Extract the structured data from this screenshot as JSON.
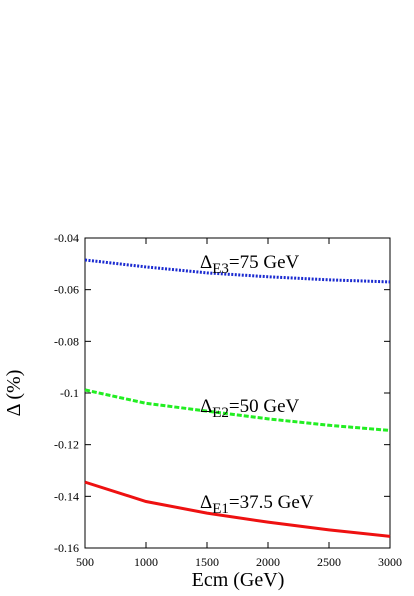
{
  "chart_data": {
    "type": "line",
    "x_label": "Ecm (GeV)",
    "y_label": "Δ (%)",
    "x": [
      500,
      1000,
      1500,
      2000,
      2500,
      3000
    ],
    "series": [
      {
        "name": "E1=37.5 GeV",
        "color": "#ee1111",
        "linestyle": "solid",
        "values": [
          -0.1345,
          -0.142,
          -0.1465,
          -0.15,
          -0.153,
          -0.1555
        ]
      },
      {
        "name": "E2=50 GeV",
        "color": "#22ee22",
        "linestyle": "dashed",
        "values": [
          -0.0988,
          -0.104,
          -0.107,
          -0.11,
          -0.1125,
          -0.1145
        ]
      },
      {
        "name": "E3=75 GeV",
        "color": "#1a2ad0",
        "linestyle": "dotted",
        "values": [
          -0.0485,
          -0.0512,
          -0.0535,
          -0.055,
          -0.0562,
          -0.057
        ]
      }
    ],
    "annotations": [
      {
        "symbol": "Δ",
        "sub": "E1",
        "text": "=37.5 GeV"
      },
      {
        "symbol": "Δ",
        "sub": "E2",
        "text": "=50 GeV"
      },
      {
        "symbol": "Δ",
        "sub": "E3",
        "text": "=75 GeV"
      }
    ],
    "xlim": [
      500,
      3000
    ],
    "xticks": [
      500,
      1000,
      1500,
      2000,
      2500,
      3000
    ],
    "ylim": [
      -0.16,
      -0.04
    ],
    "yticks": [
      -0.16,
      -0.14,
      -0.12,
      -0.1,
      -0.08,
      -0.06,
      -0.04
    ]
  }
}
